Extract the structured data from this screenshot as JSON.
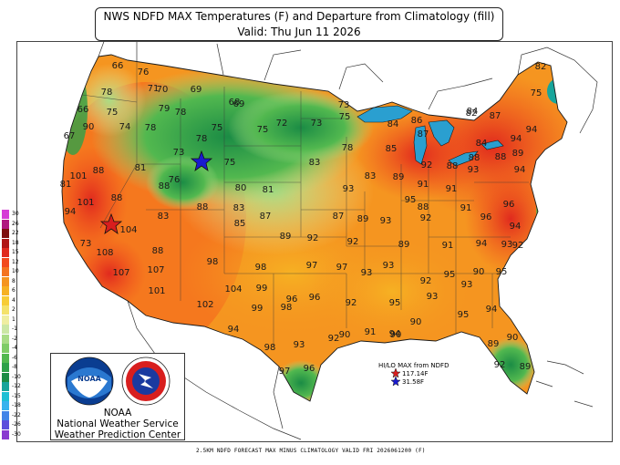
{
  "title": {
    "line1": "NWS NDFD MAX Temperatures (F) and Departure from Climatology (fill)",
    "line2": "Valid: Thu Jun 11 2026"
  },
  "legend": {
    "labels": [
      "30",
      "26",
      "22",
      "18",
      "15",
      "12",
      "10",
      "8",
      "6",
      "4",
      "2",
      "1",
      "-1",
      "-2",
      "-4",
      "-6",
      "-8",
      "-10",
      "-12",
      "-15",
      "-18",
      "-22",
      "-26",
      "-30"
    ],
    "colors": [
      "#d63bd6",
      "#b01880",
      "#7e0e0e",
      "#b01616",
      "#e02a1e",
      "#f24a1e",
      "#f4731f",
      "#f59520",
      "#f6b123",
      "#f7cc36",
      "#f4e26a",
      "#efeea0",
      "#cbe7a4",
      "#a9dc85",
      "#7fcc66",
      "#52b84f",
      "#2ea149",
      "#1b8c45",
      "#17a59b",
      "#1dbfd4",
      "#39b3ee",
      "#3f84e8",
      "#5b4fdc",
      "#8a3ad0"
    ]
  },
  "org": {
    "line1": "NOAA",
    "line2": "National Weather Service",
    "line3": "Weather Prediction Center"
  },
  "hilo": {
    "title": "HI/LO MAX from NDFD",
    "max": "117.14F",
    "min": "31.58F",
    "max_color": "#d81e1e",
    "min_color": "#1a1ad0"
  },
  "footer": "2.5KM NDFD FORECAST MAX MINUS CLIMATOLOGY VALID FRI 2026061200 (F)",
  "temps": [
    {
      "t": "76"
    },
    {
      "t": "66"
    },
    {
      "t": "78"
    },
    {
      "t": "71"
    },
    {
      "t": "69"
    },
    {
      "t": "68"
    },
    {
      "t": "75"
    },
    {
      "t": "66"
    },
    {
      "t": "74"
    },
    {
      "t": "78"
    },
    {
      "t": "79"
    },
    {
      "t": "70"
    },
    {
      "t": "73"
    },
    {
      "t": "84"
    },
    {
      "t": "86"
    },
    {
      "t": "82"
    },
    {
      "t": "82"
    },
    {
      "t": "90"
    },
    {
      "t": "78"
    },
    {
      "t": "69"
    },
    {
      "t": "75"
    },
    {
      "t": "75"
    },
    {
      "t": "73"
    },
    {
      "t": "72"
    },
    {
      "t": "75"
    },
    {
      "t": "78"
    },
    {
      "t": "75"
    },
    {
      "t": "84"
    },
    {
      "t": "87"
    },
    {
      "t": "67"
    },
    {
      "t": "88"
    },
    {
      "t": "81"
    },
    {
      "t": "101"
    },
    {
      "t": "81"
    },
    {
      "t": "73"
    },
    {
      "t": "88"
    },
    {
      "t": "85"
    },
    {
      "t": "87"
    },
    {
      "t": "94"
    },
    {
      "t": "84"
    },
    {
      "t": "88"
    },
    {
      "t": "94"
    },
    {
      "t": "101"
    },
    {
      "t": "88"
    },
    {
      "t": "76"
    },
    {
      "t": "78"
    },
    {
      "t": "83"
    },
    {
      "t": "83"
    },
    {
      "t": "89"
    },
    {
      "t": "92"
    },
    {
      "t": "88"
    },
    {
      "t": "89"
    },
    {
      "t": "88"
    },
    {
      "t": "94"
    },
    {
      "t": "93"
    },
    {
      "t": "75"
    },
    {
      "t": "94"
    },
    {
      "t": "88"
    },
    {
      "t": "80"
    },
    {
      "t": "81"
    },
    {
      "t": "83"
    },
    {
      "t": "93"
    },
    {
      "t": "87"
    },
    {
      "t": "91"
    },
    {
      "t": "91"
    },
    {
      "t": "88"
    },
    {
      "t": "104"
    },
    {
      "t": "83"
    },
    {
      "t": "85"
    },
    {
      "t": "87"
    },
    {
      "t": "89"
    },
    {
      "t": "95"
    },
    {
      "t": "93"
    },
    {
      "t": "91"
    },
    {
      "t": "96"
    },
    {
      "t": "96"
    },
    {
      "t": "94"
    },
    {
      "t": "73"
    },
    {
      "t": "108"
    },
    {
      "t": "88"
    },
    {
      "t": "89"
    },
    {
      "t": "92"
    },
    {
      "t": "92"
    },
    {
      "t": "92"
    },
    {
      "t": "98"
    },
    {
      "t": "89"
    },
    {
      "t": "94"
    },
    {
      "t": "91"
    },
    {
      "t": "93"
    },
    {
      "t": "92"
    },
    {
      "t": "107"
    },
    {
      "t": "107"
    },
    {
      "t": "98"
    },
    {
      "t": "97"
    },
    {
      "t": "97"
    },
    {
      "t": "93"
    },
    {
      "t": "93"
    },
    {
      "t": "95"
    },
    {
      "t": "90"
    },
    {
      "t": "95"
    },
    {
      "t": "96"
    },
    {
      "t": "101"
    },
    {
      "t": "104"
    },
    {
      "t": "99"
    },
    {
      "t": "96"
    },
    {
      "t": "92"
    },
    {
      "t": "93"
    },
    {
      "t": "92"
    },
    {
      "t": "102"
    },
    {
      "t": "99"
    },
    {
      "t": "98"
    },
    {
      "t": "95"
    },
    {
      "t": "93"
    },
    {
      "t": "95"
    },
    {
      "t": "94"
    },
    {
      "t": "94"
    },
    {
      "t": "90"
    },
    {
      "t": "90"
    },
    {
      "t": "94"
    },
    {
      "t": "90"
    },
    {
      "t": "98"
    },
    {
      "t": "93"
    },
    {
      "t": "92"
    },
    {
      "t": "91"
    },
    {
      "t": "90"
    },
    {
      "t": "97"
    },
    {
      "t": "96"
    },
    {
      "t": "89"
    },
    {
      "t": "92"
    },
    {
      "t": "89"
    }
  ]
}
